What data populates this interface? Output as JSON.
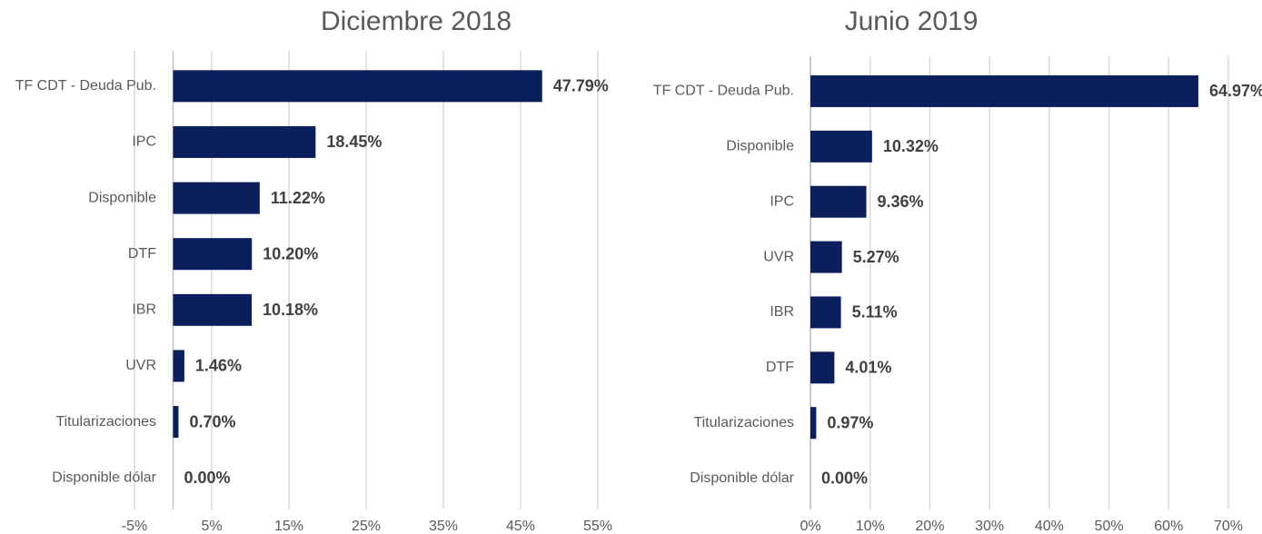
{
  "chart_data": [
    {
      "type": "bar",
      "orientation": "horizontal",
      "title": "Diciembre 2018",
      "categories": [
        "TF CDT - Deuda Pub.",
        "IPC",
        "Disponible",
        "DTF",
        "IBR",
        "UVR",
        "Titularizaciones",
        "Disponible dólar"
      ],
      "values": [
        47.79,
        18.45,
        11.22,
        10.2,
        10.18,
        1.46,
        0.7,
        0.0
      ],
      "value_labels": [
        "47.79%",
        "18.45%",
        "11.22%",
        "10.20%",
        "10.18%",
        "1.46%",
        "0.70%",
        "0.00%"
      ],
      "color": "#0b1f5c",
      "xlim": [
        -5,
        55
      ],
      "xticks": [
        {
          "value": -5,
          "label": "-5%"
        },
        {
          "value": 5,
          "label": "5%"
        },
        {
          "value": 15,
          "label": "15%"
        },
        {
          "value": 25,
          "label": "25%"
        },
        {
          "value": 35,
          "label": "35%"
        },
        {
          "value": 45,
          "label": "45%"
        },
        {
          "value": 55,
          "label": "55%"
        }
      ],
      "grid": true
    },
    {
      "type": "bar",
      "orientation": "horizontal",
      "title": "Junio 2019",
      "categories": [
        "TF CDT - Deuda Pub.",
        "Disponible",
        "IPC",
        "UVR",
        "IBR",
        "DTF",
        "Titularizaciones",
        "Disponible dólar"
      ],
      "values": [
        64.97,
        10.32,
        9.36,
        5.27,
        5.11,
        4.01,
        0.97,
        0.0
      ],
      "value_labels": [
        "64.97%",
        "10.32%",
        "9.36%",
        "5.27%",
        "5.11%",
        "4.01%",
        "0.97%",
        "0.00%"
      ],
      "color": "#0b1f5c",
      "xlim": [
        0,
        70
      ],
      "xticks": [
        {
          "value": 0,
          "label": "0%"
        },
        {
          "value": 10,
          "label": "10%"
        },
        {
          "value": 20,
          "label": "20%"
        },
        {
          "value": 30,
          "label": "30%"
        },
        {
          "value": 40,
          "label": "40%"
        },
        {
          "value": 50,
          "label": "50%"
        },
        {
          "value": 60,
          "label": "60%"
        },
        {
          "value": 70,
          "label": "70%"
        }
      ],
      "grid": true
    }
  ]
}
